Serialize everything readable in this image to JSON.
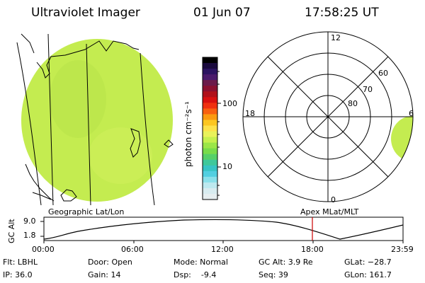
{
  "header": {
    "title": "Ultraviolet Imager",
    "date": "01 Jun 07",
    "time": "17:58:25 UT"
  },
  "colorbar": {
    "unit_label": "photon cm⁻²s⁻¹",
    "tick_100": "100",
    "tick_10": "10",
    "colors": [
      "#000000",
      "#1a0a3d",
      "#2b1360",
      "#4a1a6b",
      "#6b1a4a",
      "#8a1030",
      "#b0101a",
      "#d81010",
      "#f03010",
      "#f86010",
      "#fb9a10",
      "#fcc620",
      "#fde24a",
      "#e9f25a",
      "#c6f04e",
      "#9be648",
      "#78dc4a",
      "#56d068",
      "#3fc89a",
      "#37c4c4",
      "#52cfe0",
      "#8ae0ea",
      "#bde9ef",
      "#d8ecf0",
      "#e6eef0"
    ]
  },
  "geo_panel": {
    "label": "Geographic Lat/Lon",
    "fill_color": "#c4ec50"
  },
  "polar_panel": {
    "label": "Apex MLat/MLT",
    "mlt_12": "12",
    "mlt_18": "18",
    "mlt_6": "6",
    "mlt_0": "0",
    "lat_60": "60",
    "lat_70": "70",
    "lat_80": "80"
  },
  "orbit": {
    "ylabel": "GC Alt",
    "ytick_top": "9.0",
    "ytick_bottom": "1.8",
    "xticks": [
      "00:00",
      "06:00",
      "12:00",
      "18:00",
      "23:59"
    ],
    "marker_color": "#cc0000"
  },
  "footer": {
    "flt": "Flt: LBHL",
    "ip": "IP: 36.0",
    "door": "Door: Open",
    "gain": "Gain: 14",
    "mode": "Mode: Normal",
    "dsp": "Dsp:    -9.4",
    "gcalt": "GC Alt: 3.9 Re",
    "seq": "Seq: 39",
    "glat": "GLat: −28.7",
    "glon": "GLon: 161.7"
  }
}
